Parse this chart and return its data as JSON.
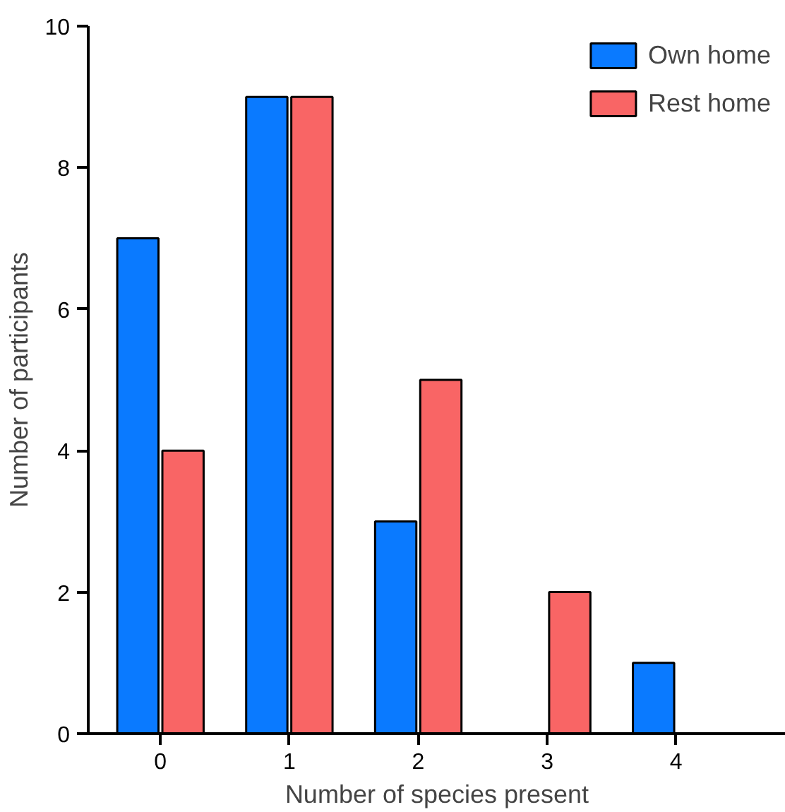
{
  "chart_data": {
    "type": "bar",
    "xlabel": "Number of species present",
    "ylabel": "Number of participants",
    "categories": [
      "0",
      "1",
      "2",
      "3",
      "4"
    ],
    "series": [
      {
        "name": "Own home",
        "color": "#0a7aff",
        "values": [
          7,
          9,
          3,
          0,
          1
        ]
      },
      {
        "name": "Rest home",
        "color": "#f96565",
        "values": [
          4,
          9,
          5,
          2,
          0
        ]
      }
    ],
    "ylim": [
      0,
      10
    ],
    "yticks": [
      0,
      2,
      4,
      6,
      8,
      10
    ],
    "grid": false,
    "legend": "top right"
  }
}
